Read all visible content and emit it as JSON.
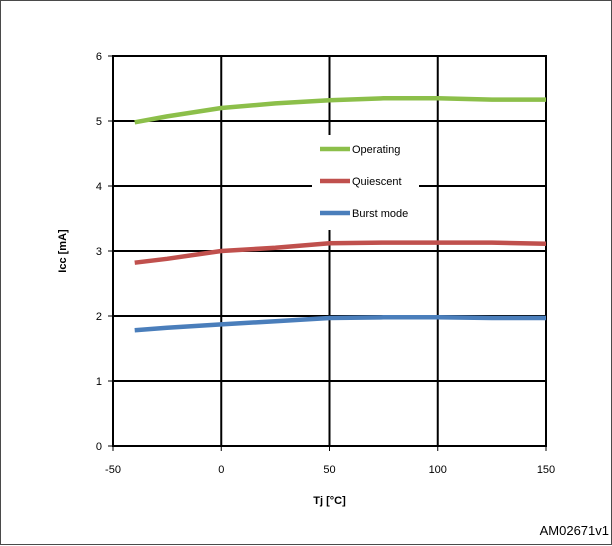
{
  "chart_data": {
    "type": "line",
    "xlabel": "Tj [°C]",
    "ylabel": "Icc [mA]",
    "xlim": [
      -50,
      150
    ],
    "ylim": [
      0,
      6
    ],
    "xticks": [
      "-50",
      "0",
      "50",
      "100",
      "150"
    ],
    "yticks": [
      "0",
      "1",
      "2",
      "3",
      "4",
      "5",
      "6"
    ],
    "grid": true,
    "legend_position": "center",
    "series": [
      {
        "name": "Operating",
        "color": "#8CBF4A",
        "x": [
          -40,
          -25,
          0,
          25,
          50,
          75,
          100,
          125,
          150
        ],
        "y": [
          4.98,
          5.07,
          5.2,
          5.27,
          5.32,
          5.35,
          5.35,
          5.33,
          5.33
        ]
      },
      {
        "name": "Quiescent",
        "color": "#C0504D",
        "x": [
          -40,
          -25,
          0,
          25,
          50,
          75,
          100,
          125,
          150
        ],
        "y": [
          2.82,
          2.88,
          3.0,
          3.05,
          3.12,
          3.13,
          3.13,
          3.13,
          3.11
        ]
      },
      {
        "name": "Burst mode",
        "color": "#4A7EBB",
        "x": [
          -40,
          -25,
          0,
          25,
          50,
          75,
          100,
          125,
          150
        ],
        "y": [
          1.78,
          1.82,
          1.87,
          1.92,
          1.97,
          1.98,
          1.98,
          1.97,
          1.97
        ]
      }
    ]
  },
  "figure_id": "AM02671v1"
}
